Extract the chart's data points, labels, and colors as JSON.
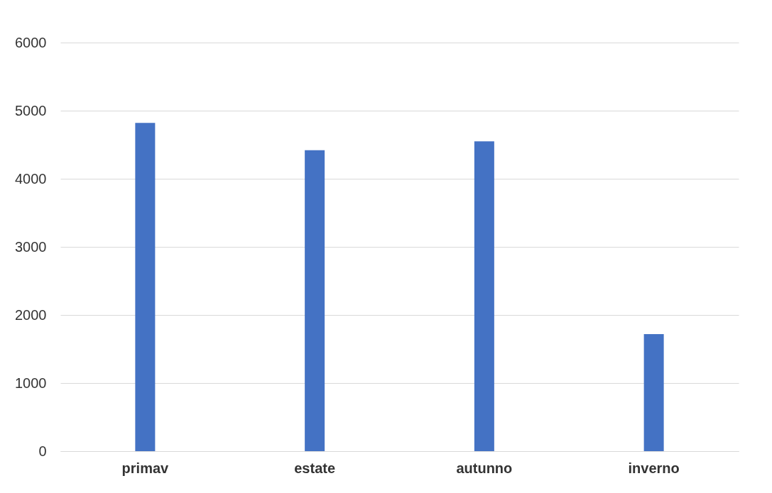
{
  "chart_data": {
    "type": "bar",
    "categories": [
      "primav",
      "estate",
      "autunno",
      "inverno"
    ],
    "values": [
      4820,
      4420,
      4550,
      1720
    ],
    "color": "#4472c4",
    "ylim": [
      0,
      6000
    ],
    "yticks": [
      0,
      1000,
      2000,
      3000,
      4000,
      5000,
      6000
    ],
    "grid": "y"
  }
}
